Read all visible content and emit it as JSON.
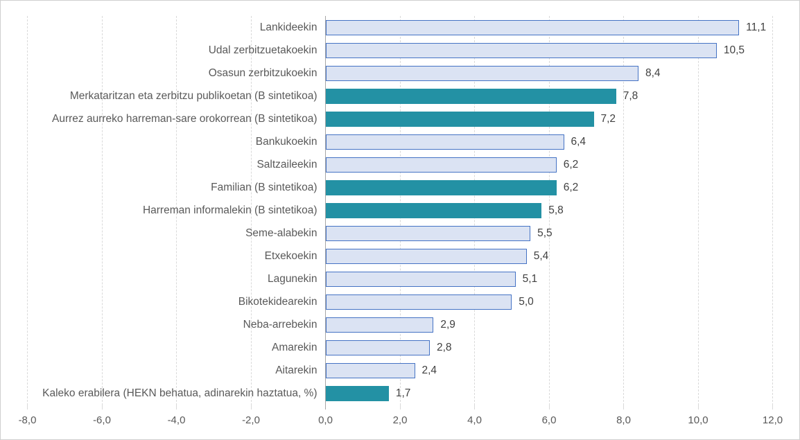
{
  "chart_data": {
    "type": "bar",
    "orientation": "horizontal",
    "title": "",
    "xlabel": "",
    "ylabel": "",
    "xlim": [
      -8,
      12
    ],
    "x_tick_values": [
      -8,
      -6,
      -4,
      -2,
      0,
      2,
      4,
      6,
      8,
      10,
      12
    ],
    "x_tick_labels": [
      "-8,0",
      "-6,0",
      "-4,0",
      "-2,0",
      "0,0",
      "2,0",
      "4,0",
      "6,0",
      "8,0",
      "10,0",
      "12,0"
    ],
    "grid": "vertical-dashed",
    "legend": "none",
    "decimal_separator": ",",
    "items": [
      {
        "label": "Lankideekin",
        "value": 11.1,
        "display": "11,1",
        "emphasis": false
      },
      {
        "label": "Udal zerbitzuetakoekin",
        "value": 10.5,
        "display": "10,5",
        "emphasis": false
      },
      {
        "label": "Osasun zerbitzukoekin",
        "value": 8.4,
        "display": "8,4",
        "emphasis": false
      },
      {
        "label": "Merkataritzan eta zerbitzu publikoetan (B sintetikoa)",
        "value": 7.8,
        "display": "7,8",
        "emphasis": true
      },
      {
        "label": "Aurrez aurreko harreman-sare orokorrean (B sintetikoa)",
        "value": 7.2,
        "display": "7,2",
        "emphasis": true
      },
      {
        "label": "Bankukoekin",
        "value": 6.4,
        "display": "6,4",
        "emphasis": false
      },
      {
        "label": "Saltzaileekin",
        "value": 6.2,
        "display": "6,2",
        "emphasis": false
      },
      {
        "label": "Familian (B sintetikoa)",
        "value": 6.2,
        "display": "6,2",
        "emphasis": true
      },
      {
        "label": "Harreman informalekin (B sintetikoa)",
        "value": 5.8,
        "display": "5,8",
        "emphasis": true
      },
      {
        "label": "Seme-alabekin",
        "value": 5.5,
        "display": "5,5",
        "emphasis": false
      },
      {
        "label": "Etxekoekin",
        "value": 5.4,
        "display": "5,4",
        "emphasis": false
      },
      {
        "label": "Lagunekin",
        "value": 5.1,
        "display": "5,1",
        "emphasis": false
      },
      {
        "label": "Bikotekidearekin",
        "value": 5.0,
        "display": "5,0",
        "emphasis": false
      },
      {
        "label": "Neba-arrebekin",
        "value": 2.9,
        "display": "2,9",
        "emphasis": false
      },
      {
        "label": "Amarekin",
        "value": 2.8,
        "display": "2,8",
        "emphasis": false
      },
      {
        "label": "Aitarekin",
        "value": 2.4,
        "display": "2,4",
        "emphasis": false
      },
      {
        "label": "Kaleko erabilera (HEKN behatua, adinarekin haztatua, %)",
        "value": 1.7,
        "display": "1,7",
        "emphasis": true
      }
    ],
    "colors": {
      "bar_fill": "#dbe3f3",
      "bar_border": "#4472c4",
      "bar_emphasis": "#2391a4",
      "gridline": "#d9d9d9",
      "axis_line": "#a6a6a6",
      "category_label": "#595959",
      "value_label": "#404040",
      "tick_label": "#595959",
      "frame_border": "#cfcfcf",
      "background": "#ffffff"
    }
  }
}
